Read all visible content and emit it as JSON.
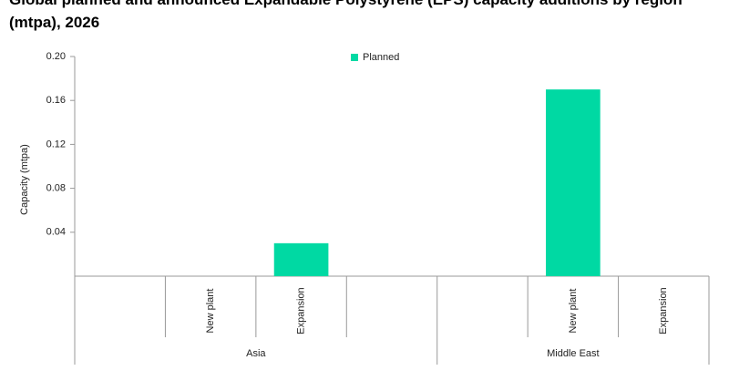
{
  "chart_data": {
    "type": "bar",
    "title": "Global planned and announced Expandable Polystyrene (EPS) capacity additions by region (mtpa), 2026",
    "y_label": "Capacity (mtpa)",
    "series": [
      {
        "name": "Planned",
        "color": "#00d9a3"
      }
    ],
    "groups": [
      {
        "name": "Asia",
        "categories": [
          null,
          "New plant",
          "Expansion",
          null
        ],
        "values": [
          null,
          null,
          0.03,
          null
        ]
      },
      {
        "name": "Middle East",
        "categories": [
          null,
          "New plant",
          "Expansion"
        ],
        "values": [
          null,
          0.17,
          null
        ]
      }
    ],
    "ylim": [
      0,
      0.2
    ],
    "yticks": [
      0.04,
      0.08,
      0.12,
      0.16,
      {
        "value": 0.2,
        "label": "0.20"
      }
    ],
    "legend": "top"
  }
}
